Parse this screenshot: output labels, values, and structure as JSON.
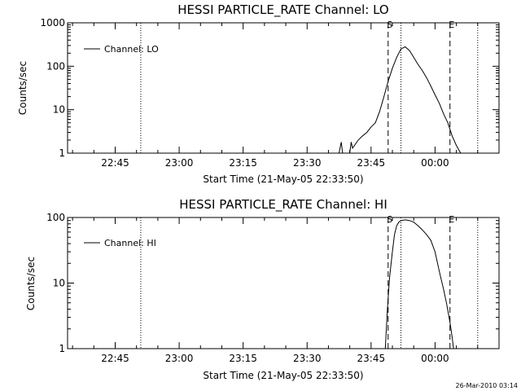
{
  "chart_data": [
    {
      "type": "line",
      "title": "HESSI PARTICLE_RATE Channel: LO",
      "ylabel": "Counts/sec",
      "xlabel": "Start Time (21-May-05 22:33:50)",
      "yscale": "log",
      "ylim": [
        1,
        1000
      ],
      "xlim": [
        "22:33:50",
        "00:15:00"
      ],
      "y_ticks": [
        1,
        10,
        100,
        1000
      ],
      "y_tick_labels": [
        "1",
        "10",
        "100",
        "1000"
      ],
      "x_ticks": [
        "22:45",
        "23:00",
        "23:15",
        "23:30",
        "23:45",
        "00:00"
      ],
      "markers": [
        {
          "label": "S",
          "time": "23:49:00",
          "style": "dashed"
        },
        {
          "label": "E",
          "time": "00:03:30",
          "style": "dashed"
        }
      ],
      "dotted_lines": [
        "22:51:00",
        "23:52:00",
        "00:10:00"
      ],
      "legend": {
        "entries": [
          "Channel: LO"
        ],
        "position": "top-left"
      },
      "series": [
        {
          "name": "Channel: LO",
          "x": [
            "23:37:30",
            "23:38:00",
            "23:38:20",
            "23:40:00",
            "23:40:20",
            "23:40:40",
            "23:42:00",
            "23:43:00",
            "23:44:00",
            "23:45:00",
            "23:46:00",
            "23:47:00",
            "23:48:00",
            "23:49:00",
            "23:50:00",
            "23:51:00",
            "23:52:00",
            "23:53:00",
            "23:54:00",
            "23:55:00",
            "23:56:00",
            "23:57:00",
            "23:58:00",
            "23:59:00",
            "00:00:00",
            "00:01:00",
            "00:02:00",
            "00:03:00",
            "00:04:00",
            "00:05:00",
            "00:06:00"
          ],
          "y": [
            1,
            1.8,
            1,
            1,
            1.8,
            1.3,
            2.0,
            2.5,
            3.0,
            4.0,
            5.0,
            9.0,
            20,
            45,
            90,
            160,
            250,
            280,
            230,
            160,
            110,
            80,
            55,
            35,
            22,
            14,
            8,
            5,
            2.5,
            1.5,
            1
          ]
        }
      ]
    },
    {
      "type": "line",
      "title": "HESSI PARTICLE_RATE Channel: HI",
      "ylabel": "Counts/sec",
      "xlabel": "Start Time (21-May-05 22:33:50)",
      "yscale": "log",
      "ylim": [
        1,
        100
      ],
      "xlim": [
        "22:33:50",
        "00:15:00"
      ],
      "y_ticks": [
        1,
        10,
        100
      ],
      "y_tick_labels": [
        "1",
        "10",
        "100"
      ],
      "x_ticks": [
        "22:45",
        "23:00",
        "23:15",
        "23:30",
        "23:45",
        "00:00"
      ],
      "markers": [
        {
          "label": "S",
          "time": "23:49:00",
          "style": "dashed"
        },
        {
          "label": "E",
          "time": "00:03:30",
          "style": "dashed"
        }
      ],
      "dotted_lines": [
        "22:51:00",
        "23:52:00",
        "00:10:00"
      ],
      "legend": {
        "entries": [
          "Channel: HI"
        ],
        "position": "top-left"
      },
      "series": [
        {
          "name": "Channel: HI",
          "x": [
            "23:48:20",
            "23:48:50",
            "23:49:20",
            "23:50:00",
            "23:50:30",
            "23:51:00",
            "23:51:30",
            "23:52:00",
            "23:53:00",
            "23:54:00",
            "23:55:00",
            "23:56:00",
            "23:57:00",
            "23:58:00",
            "23:59:00",
            "00:00:00",
            "00:01:00",
            "00:02:00",
            "00:02:40",
            "00:03:30",
            "00:04:00",
            "00:04:20"
          ],
          "y": [
            1,
            4,
            12,
            30,
            55,
            75,
            85,
            90,
            92,
            90,
            85,
            75,
            65,
            55,
            45,
            30,
            15,
            8,
            5,
            2.5,
            1.5,
            1
          ]
        }
      ]
    }
  ],
  "timestamp": "26-Mar-2010 03:14"
}
